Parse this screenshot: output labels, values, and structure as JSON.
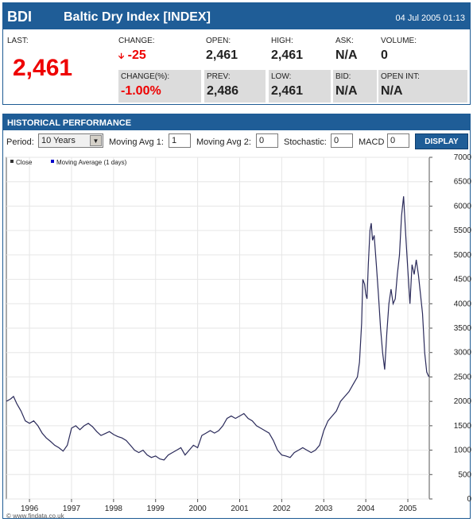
{
  "quote": {
    "symbol": "BDI",
    "name": "Baltic Dry Index [INDEX]",
    "datetime": "04 Jul 2005 01:13",
    "last_label": "LAST:",
    "last_value": "2,461",
    "change_label": "CHANGE:",
    "change_value": "-25",
    "change_pct_label": "CHANGE(%):",
    "change_pct_value": "-1.00%",
    "open_label": "OPEN:",
    "open_value": "2,461",
    "prev_label": "PREV:",
    "prev_value": "2,486",
    "high_label": "HIGH:",
    "high_value": "2,461",
    "low_label": "LOW:",
    "low_value": "2,461",
    "ask_label": "ASK:",
    "ask_value": "N/A",
    "bid_label": "BID:",
    "bid_value": "N/A",
    "volume_label": "VOLUME:",
    "volume_value": "0",
    "openint_label": "OPEN INT:",
    "openint_value": "N/A",
    "down_arrow_icon": "down-arrow-icon",
    "negative_color": "#e00000"
  },
  "history": {
    "title": "HISTORICAL PERFORMANCE",
    "period_label": "Period:",
    "period_value": "10 Years",
    "ma1_label": "Moving Avg 1:",
    "ma1_value": "1",
    "ma2_label": "Moving Avg 2:",
    "ma2_value": "0",
    "stoch_label": "Stochastic:",
    "stoch_value": "0",
    "macd_label": "MACD",
    "macd_value": "0",
    "display_label": "DISPLAY",
    "dropdown_icon": "dropdown-arrow-icon"
  },
  "chart_data": {
    "type": "line",
    "legend": [
      "Close",
      "Moving Average (1 days)"
    ],
    "legend_colors": [
      "#333333",
      "#0000cc"
    ],
    "line_color": "#2a2a5a",
    "ylim": [
      0,
      7000
    ],
    "yticks": [
      0,
      500,
      1000,
      1500,
      2000,
      2500,
      3000,
      3500,
      4000,
      4500,
      5000,
      5500,
      6000,
      6500,
      7000
    ],
    "xlim": [
      1995.45,
      2005.51
    ],
    "xticks": [
      1996,
      1997,
      1998,
      1999,
      2000,
      2001,
      2002,
      2003,
      2004,
      2005
    ],
    "xtick_labels": [
      "1996",
      "1997",
      "1998",
      "1999",
      "2000",
      "2001",
      "2002",
      "2003",
      "2004",
      "2005"
    ],
    "watermark": "© www.findata.co.uk",
    "grid": true,
    "series": [
      {
        "x": [
          1995.45,
          1995.55,
          1995.62,
          1995.7,
          1995.8,
          1995.9,
          1996.0,
          1996.1,
          1996.2,
          1996.3,
          1996.4,
          1996.5,
          1996.6,
          1996.7,
          1996.8,
          1996.9,
          1997.0,
          1997.1,
          1997.2,
          1997.3,
          1997.4,
          1997.5,
          1997.6,
          1997.7,
          1997.8,
          1997.9,
          1998.0,
          1998.1,
          1998.2,
          1998.3,
          1998.4,
          1998.5,
          1998.6,
          1998.7,
          1998.8,
          1998.9,
          1999.0,
          1999.1,
          1999.2,
          1999.3,
          1999.4,
          1999.5,
          1999.6,
          1999.7,
          1999.8,
          1999.9,
          2000.0,
          2000.1,
          2000.2,
          2000.3,
          2000.4,
          2000.5,
          2000.6,
          2000.7,
          2000.8,
          2000.9,
          2001.0,
          2001.1,
          2001.2,
          2001.3,
          2001.4,
          2001.5,
          2001.6,
          2001.7,
          2001.8,
          2001.9,
          2002.0,
          2002.1,
          2002.2,
          2002.3,
          2002.4,
          2002.5,
          2002.6,
          2002.7,
          2002.8,
          2002.9,
          2003.0,
          2003.1,
          2003.2,
          2003.3,
          2003.4,
          2003.5,
          2003.6,
          2003.7,
          2003.8,
          2003.85,
          2003.9,
          2003.93,
          2003.97,
          2004.0,
          2004.03,
          2004.06,
          2004.1,
          2004.13,
          2004.16,
          2004.2,
          2004.25,
          2004.3,
          2004.35,
          2004.4,
          2004.45,
          2004.5,
          2004.55,
          2004.6,
          2004.65,
          2004.7,
          2004.75,
          2004.8,
          2004.85,
          2004.9,
          2004.95,
          2005.0,
          2005.05,
          2005.1,
          2005.15,
          2005.2,
          2005.25,
          2005.3,
          2005.35,
          2005.4,
          2005.45,
          2005.5
        ],
        "y": [
          2000,
          2050,
          2100,
          1950,
          1800,
          1600,
          1550,
          1600,
          1500,
          1350,
          1250,
          1180,
          1100,
          1050,
          980,
          1100,
          1450,
          1500,
          1420,
          1500,
          1550,
          1480,
          1380,
          1300,
          1340,
          1380,
          1320,
          1280,
          1250,
          1200,
          1100,
          1000,
          950,
          1000,
          900,
          850,
          880,
          820,
          800,
          900,
          950,
          1000,
          1050,
          900,
          1000,
          1100,
          1050,
          1300,
          1350,
          1400,
          1350,
          1400,
          1500,
          1650,
          1700,
          1650,
          1700,
          1750,
          1650,
          1600,
          1500,
          1450,
          1400,
          1350,
          1200,
          1000,
          900,
          880,
          850,
          950,
          1000,
          1050,
          1000,
          950,
          1000,
          1100,
          1400,
          1600,
          1700,
          1800,
          2000,
          2100,
          2200,
          2350,
          2500,
          2800,
          3600,
          4500,
          4400,
          4200,
          4100,
          4800,
          5500,
          5650,
          5300,
          5400,
          4800,
          4200,
          3500,
          3000,
          2650,
          3400,
          4000,
          4300,
          4000,
          4100,
          4600,
          5000,
          5800,
          6200,
          5400,
          4700,
          4000,
          4800,
          4600,
          4900,
          4600,
          4200,
          3800,
          3000,
          2600,
          2500
        ]
      }
    ]
  }
}
